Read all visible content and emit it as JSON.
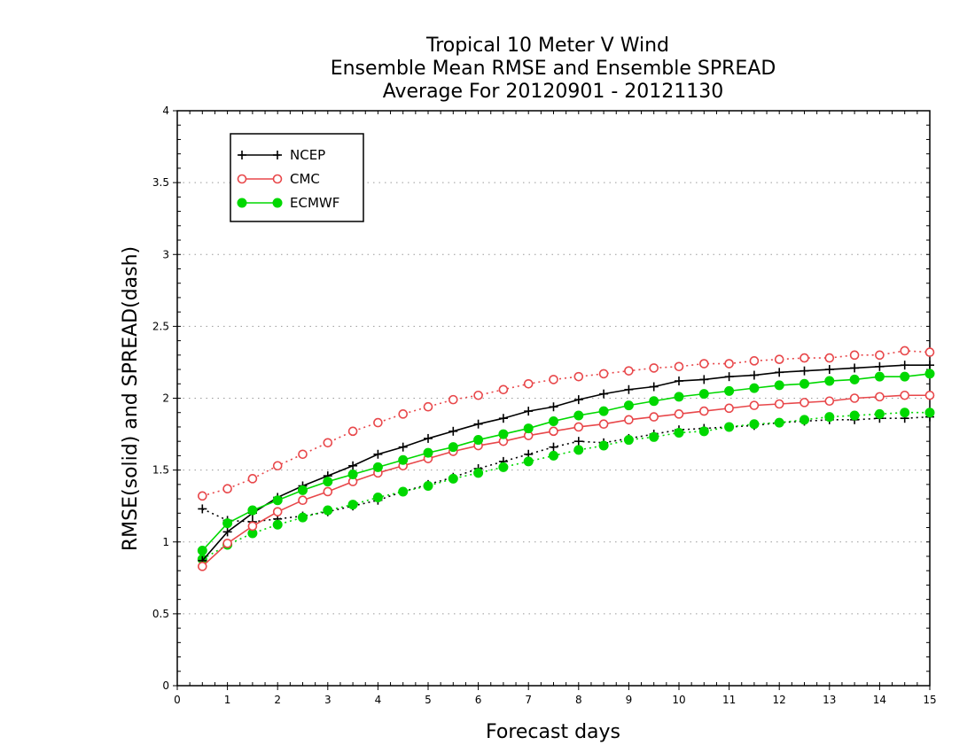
{
  "chart_data": {
    "type": "line",
    "title_lines": [
      "Tropical 10 Meter V Wind",
      "Ensemble Mean RMSE and Ensemble SPREAD",
      "Average For 20120901 - 20121130"
    ],
    "xlabel": "Forecast days",
    "ylabel": "RMSE(solid)  and  SPREAD(dash)",
    "xlim": [
      0,
      15
    ],
    "ylim": [
      0,
      4
    ],
    "x_ticks": [
      "0",
      "1",
      "2",
      "3",
      "4",
      "5",
      "6",
      "7",
      "8",
      "9",
      "10",
      "11",
      "12",
      "13",
      "14",
      "15"
    ],
    "y_ticks": [
      "0",
      "0.5",
      "1",
      "1.5",
      "2",
      "2.5",
      "3",
      "3.5",
      "4"
    ],
    "grid": "horizontal dotted",
    "legend_position": "top-left",
    "x": [
      0.5,
      1,
      1.5,
      2,
      2.5,
      3,
      3.5,
      4,
      4.5,
      5,
      5.5,
      6,
      6.5,
      7,
      7.5,
      8,
      8.5,
      9,
      9.5,
      10,
      10.5,
      11,
      11.5,
      12,
      12.5,
      13,
      13.5,
      14,
      14.5,
      15
    ],
    "series": [
      {
        "name": "NCEP",
        "color": "#000000",
        "marker": "plus",
        "rmse": [
          0.87,
          1.07,
          1.2,
          1.31,
          1.39,
          1.46,
          1.53,
          1.61,
          1.66,
          1.72,
          1.77,
          1.82,
          1.86,
          1.91,
          1.94,
          1.99,
          2.03,
          2.06,
          2.08,
          2.12,
          2.13,
          2.15,
          2.16,
          2.18,
          2.19,
          2.2,
          2.21,
          2.22,
          2.23,
          2.23
        ],
        "spread": [
          1.23,
          1.15,
          1.14,
          1.16,
          1.18,
          1.21,
          1.25,
          1.29,
          1.35,
          1.4,
          1.45,
          1.51,
          1.56,
          1.61,
          1.66,
          1.7,
          1.69,
          1.72,
          1.75,
          1.78,
          1.79,
          1.8,
          1.81,
          1.83,
          1.84,
          1.85,
          1.85,
          1.86,
          1.86,
          1.87
        ]
      },
      {
        "name": "CMC",
        "color": "#e8474a",
        "marker": "open-circle",
        "rmse": [
          0.83,
          0.99,
          1.11,
          1.21,
          1.29,
          1.35,
          1.42,
          1.48,
          1.53,
          1.58,
          1.63,
          1.67,
          1.7,
          1.74,
          1.77,
          1.8,
          1.82,
          1.85,
          1.87,
          1.89,
          1.91,
          1.93,
          1.95,
          1.96,
          1.97,
          1.98,
          2.0,
          2.01,
          2.02,
          2.02
        ],
        "spread": [
          1.32,
          1.37,
          1.44,
          1.53,
          1.61,
          1.69,
          1.77,
          1.83,
          1.89,
          1.94,
          1.99,
          2.02,
          2.06,
          2.1,
          2.13,
          2.15,
          2.17,
          2.19,
          2.21,
          2.22,
          2.24,
          2.24,
          2.26,
          2.27,
          2.28,
          2.28,
          2.3,
          2.3,
          2.33,
          2.32
        ]
      },
      {
        "name": "ECMWF",
        "color": "#00d800",
        "marker": "filled-circle",
        "rmse": [
          0.94,
          1.13,
          1.22,
          1.29,
          1.36,
          1.42,
          1.47,
          1.52,
          1.57,
          1.62,
          1.66,
          1.71,
          1.75,
          1.79,
          1.84,
          1.88,
          1.91,
          1.95,
          1.98,
          2.01,
          2.03,
          2.05,
          2.07,
          2.09,
          2.1,
          2.12,
          2.13,
          2.15,
          2.15,
          2.17
        ],
        "spread": [
          0.88,
          0.98,
          1.06,
          1.12,
          1.17,
          1.22,
          1.26,
          1.31,
          1.35,
          1.39,
          1.44,
          1.48,
          1.52,
          1.56,
          1.6,
          1.64,
          1.67,
          1.71,
          1.73,
          1.76,
          1.77,
          1.8,
          1.82,
          1.83,
          1.85,
          1.87,
          1.88,
          1.89,
          1.9,
          1.9
        ]
      }
    ]
  }
}
